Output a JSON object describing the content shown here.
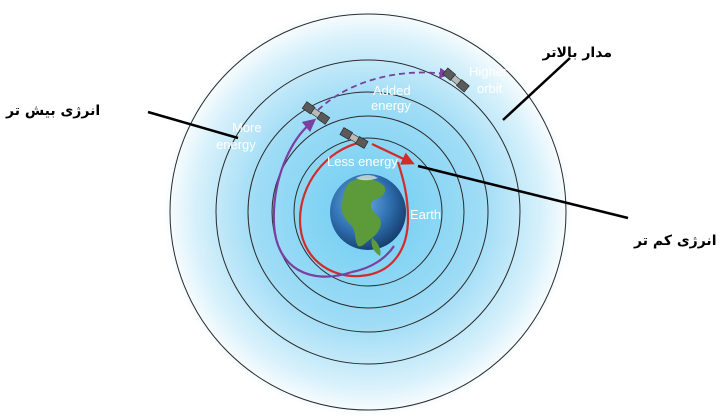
{
  "colors": {
    "space_center": "#7fd3f3",
    "space_mid": "#bfe9fa",
    "space_edge": "#ffffff",
    "orbit_ring": "#2a2a2a",
    "less_energy_path": "#d42a2a",
    "more_energy_path": "#7b3fa0",
    "annotation_line": "#000000",
    "earth_ocean": "#2f6fb0",
    "earth_land": "#5c9a3a"
  },
  "labels": {
    "higher_orbit_line1": "Higher",
    "higher_orbit_line2": "orbit",
    "added_energy_line1": "Added",
    "added_energy_line2": "energy",
    "more_energy_line1": "More",
    "more_energy_line2": "energy",
    "less_energy": "Less energy",
    "earth": "Earth"
  },
  "annotations": {
    "higher_orbit_fa": "مدار بالاتر",
    "more_energy_fa": "انرژی بیش تر",
    "less_energy_fa": "انرژی کم تر"
  },
  "icons": [
    "satellite-icon",
    "earth-globe-icon"
  ]
}
